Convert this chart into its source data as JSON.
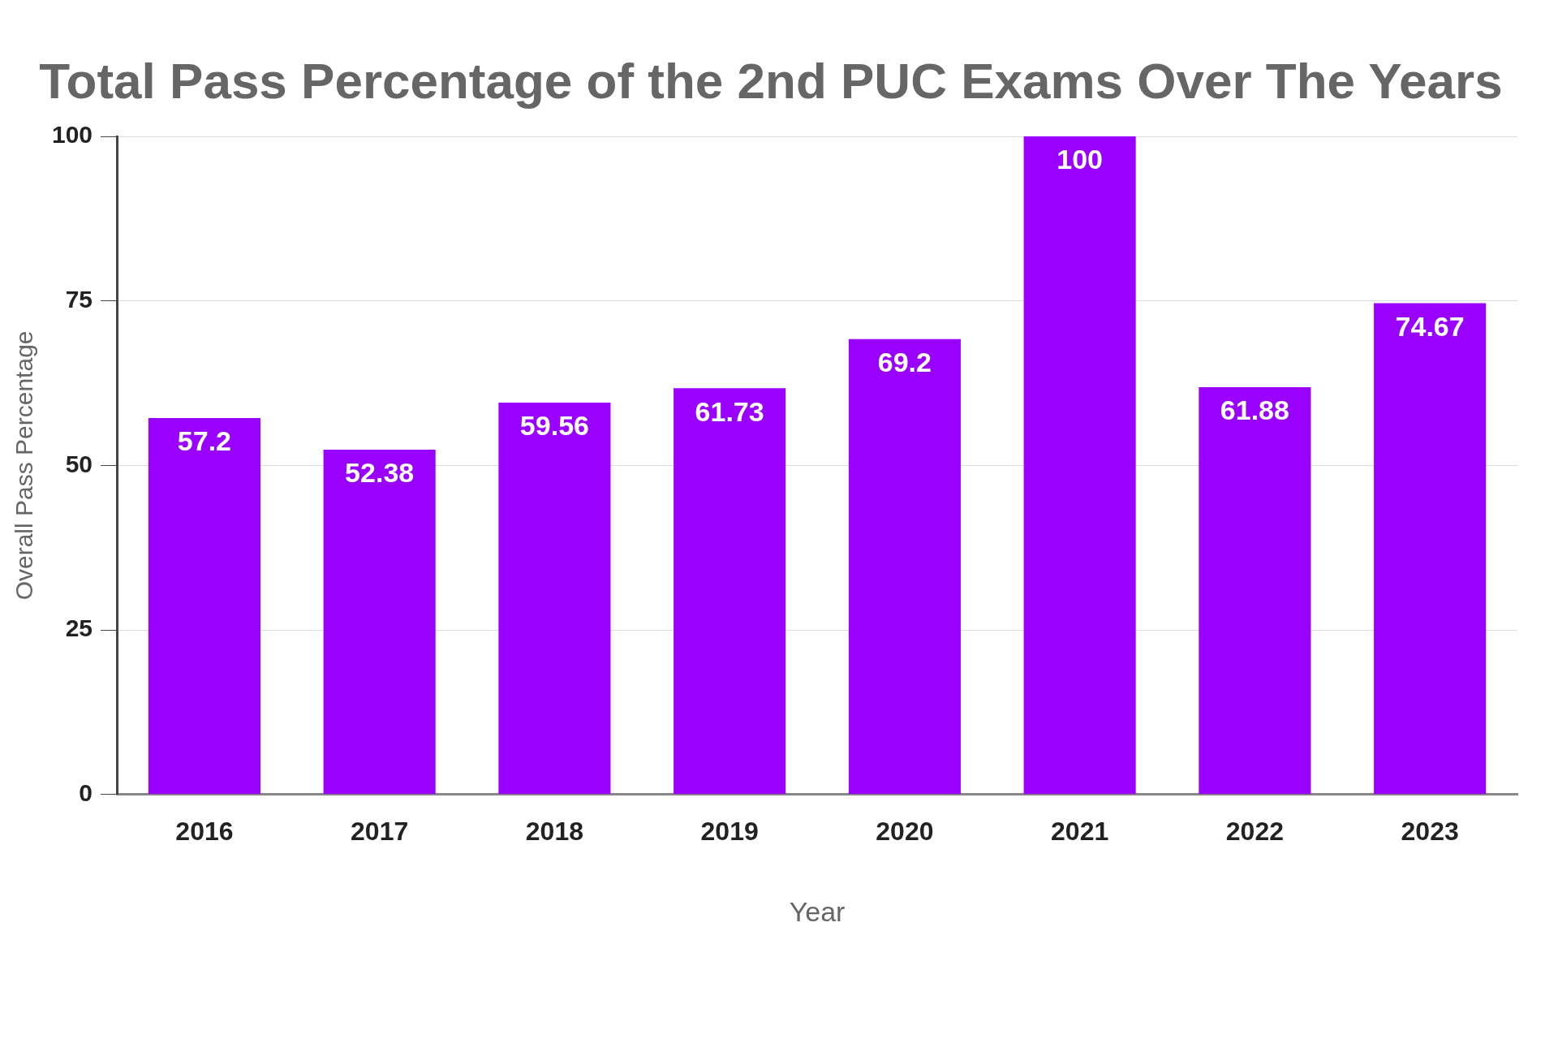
{
  "chart_data": {
    "type": "bar",
    "title": "Total Pass Percentage of the 2nd PUC Exams Over The Years",
    "xlabel": "Year",
    "ylabel": "Overall Pass Percentage",
    "categories": [
      "2016",
      "2017",
      "2018",
      "2019",
      "2020",
      "2021",
      "2022",
      "2023"
    ],
    "values": [
      57.2,
      52.38,
      59.56,
      61.73,
      69.2,
      100,
      61.88,
      74.67
    ],
    "color": "#9900ff",
    "ylim": [
      0,
      100
    ],
    "yticks": [
      0,
      25,
      50,
      75,
      100
    ],
    "grid": "y",
    "data_labels": true
  }
}
